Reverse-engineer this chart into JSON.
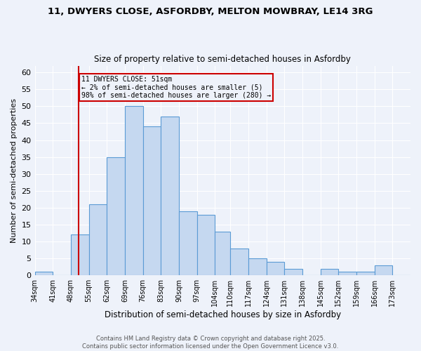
{
  "title_line1": "11, DWYERS CLOSE, ASFORDBY, MELTON MOWBRAY, LE14 3RG",
  "title_line2": "Size of property relative to semi-detached houses in Asfordby",
  "xlabel": "Distribution of semi-detached houses by size in Asfordby",
  "ylabel": "Number of semi-detached properties",
  "bin_labels": [
    "34sqm",
    "41sqm",
    "48sqm",
    "55sqm",
    "62sqm",
    "69sqm",
    "76sqm",
    "83sqm",
    "90sqm",
    "97sqm",
    "104sqm",
    "110sqm",
    "117sqm",
    "124sqm",
    "131sqm",
    "138sqm",
    "145sqm",
    "152sqm",
    "159sqm",
    "166sqm",
    "173sqm"
  ],
  "bin_edges": [
    34,
    41,
    48,
    55,
    62,
    69,
    76,
    83,
    90,
    97,
    104,
    110,
    117,
    124,
    131,
    138,
    145,
    152,
    159,
    166,
    173,
    180
  ],
  "bar_values": [
    1,
    0,
    12,
    21,
    35,
    50,
    44,
    47,
    19,
    18,
    13,
    8,
    5,
    4,
    2,
    0,
    2,
    1,
    1,
    3,
    0
  ],
  "bar_facecolor": "#c5d8f0",
  "bar_edgecolor": "#5b9bd5",
  "property_size": 51,
  "vline_color": "#cc0000",
  "annotation_box_edgecolor": "#cc0000",
  "annotation_text": "11 DWYERS CLOSE: 51sqm\n← 2% of semi-detached houses are smaller (5)\n98% of semi-detached houses are larger (280) →",
  "ylim": [
    0,
    62
  ],
  "yticks": [
    0,
    5,
    10,
    15,
    20,
    25,
    30,
    35,
    40,
    45,
    50,
    55,
    60
  ],
  "background_color": "#eef2fa",
  "grid_color": "#ffffff",
  "footer_line1": "Contains HM Land Registry data © Crown copyright and database right 2025.",
  "footer_line2": "Contains public sector information licensed under the Open Government Licence v3.0."
}
